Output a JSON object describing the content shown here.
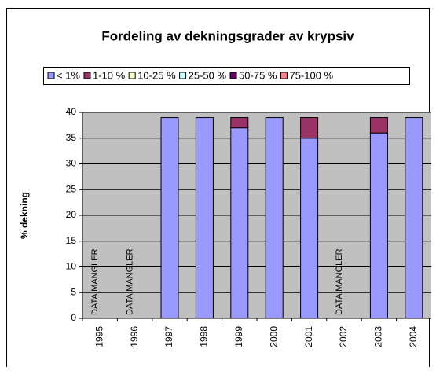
{
  "chart_data": {
    "type": "stacked_bar",
    "title": "Fordeling av dekningsgrader av krypsiv",
    "y_label": "% dekning",
    "categories": [
      "1995",
      "1996",
      "1997",
      "1998",
      "1999",
      "2000",
      "2001",
      "2002",
      "2003",
      "2004"
    ],
    "series": [
      {
        "name": "< 1%",
        "color": "#9999ff",
        "values": [
          null,
          null,
          39,
          39,
          37,
          39,
          35,
          null,
          36,
          39
        ]
      },
      {
        "name": "1-10 %",
        "color": "#993366",
        "values": [
          null,
          null,
          0,
          0,
          2,
          0,
          4,
          null,
          3,
          0
        ]
      },
      {
        "name": "10-25 %",
        "color": "#ffffcc",
        "values": [
          null,
          null,
          0,
          0,
          0,
          0,
          0,
          null,
          0,
          0
        ]
      },
      {
        "name": "25-50 %",
        "color": "#ccffff",
        "values": [
          null,
          null,
          0,
          0,
          0,
          0,
          0,
          null,
          0,
          0
        ]
      },
      {
        "name": "50-75 %",
        "color": "#660066",
        "values": [
          null,
          null,
          0,
          0,
          0,
          0,
          0,
          null,
          0,
          0
        ]
      },
      {
        "name": "75-100 %",
        "color": "#ff8080",
        "values": [
          null,
          null,
          0,
          0,
          0,
          0,
          0,
          null,
          0,
          0
        ]
      }
    ],
    "annotations": [
      {
        "text": "DATA MANGLER",
        "category": "1995"
      },
      {
        "text": "DATA MANGLER",
        "category": "1996"
      },
      {
        "text": "DATA MANGLER",
        "category": "2002"
      }
    ],
    "ylim": [
      0,
      40
    ],
    "yticks": [
      0,
      5,
      10,
      15,
      20,
      25,
      30,
      35,
      40
    ],
    "grid": true,
    "legend": "top"
  }
}
